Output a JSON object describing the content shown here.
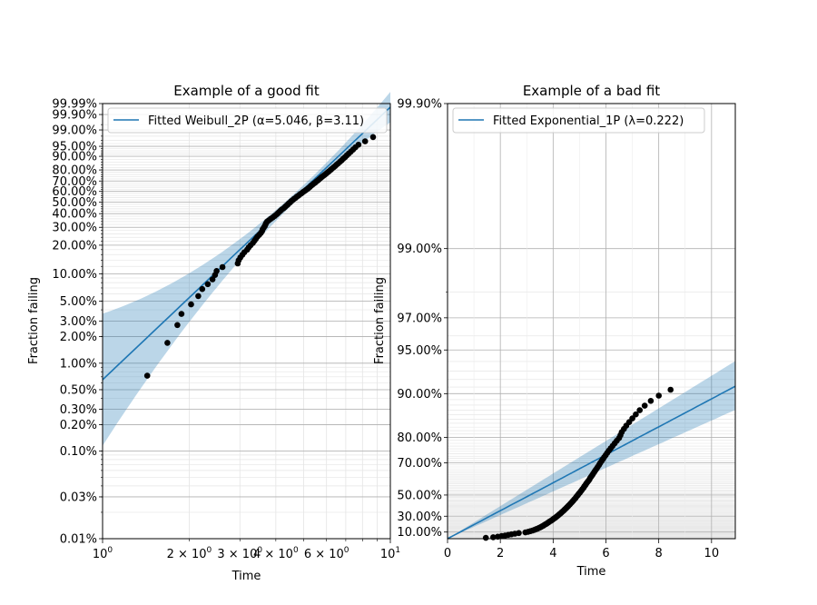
{
  "chart_data": [
    {
      "type": "scatter",
      "title": "Example of a good fit",
      "xlabel": "Time",
      "ylabel": "Fraction failing",
      "x_scale": "log",
      "y_scale": "weibull",
      "xlim": [
        1,
        10
      ],
      "ylim": [
        0.0001,
        0.9999
      ],
      "x_ticks": [
        {
          "v": 1,
          "label": "10",
          "exp": "0"
        },
        {
          "v": 10,
          "label": "10",
          "exp": "1"
        }
      ],
      "x_minor_ticks": [
        {
          "v": 2,
          "label": "2 × 10",
          "exp": "0"
        },
        {
          "v": 3,
          "label": "3 × 10",
          "exp": "0"
        },
        {
          "v": 4,
          "label": "4 × 10",
          "exp": "0"
        },
        {
          "v": 6,
          "label": "6 × 10",
          "exp": "0"
        }
      ],
      "y_ticks": [
        {
          "v": 0.0001,
          "label": "0.01%"
        },
        {
          "v": 0.0003,
          "label": "0.03%"
        },
        {
          "v": 0.001,
          "label": "0.10%"
        },
        {
          "v": 0.002,
          "label": "0.20%"
        },
        {
          "v": 0.003,
          "label": "0.30%"
        },
        {
          "v": 0.005,
          "label": "0.50%"
        },
        {
          "v": 0.01,
          "label": "1.00%"
        },
        {
          "v": 0.02,
          "label": "2.00%"
        },
        {
          "v": 0.03,
          "label": "3.00%"
        },
        {
          "v": 0.05,
          "label": "5.00%"
        },
        {
          "v": 0.1,
          "label": "10.00%"
        },
        {
          "v": 0.2,
          "label": "20.00%"
        },
        {
          "v": 0.3,
          "label": "30.00%"
        },
        {
          "v": 0.4,
          "label": "40.00%"
        },
        {
          "v": 0.5,
          "label": "50.00%"
        },
        {
          "v": 0.6,
          "label": "60.00%"
        },
        {
          "v": 0.7,
          "label": "70.00%"
        },
        {
          "v": 0.8,
          "label": "80.00%"
        },
        {
          "v": 0.9,
          "label": "90.00%"
        },
        {
          "v": 0.95,
          "label": "95.00%"
        },
        {
          "v": 0.99,
          "label": "99.00%"
        },
        {
          "v": 0.999,
          "label": "99.90%"
        },
        {
          "v": 0.9999,
          "label": "99.99%"
        }
      ],
      "legend": {
        "label": "Fitted Weibull_2P (α=5.046, β=3.11)",
        "placement": "upper-left"
      },
      "fit": {
        "alpha": 5.046,
        "beta": 3.11,
        "x_range": [
          1,
          10
        ],
        "line_color": "#1f77b4",
        "band_color": "#1f77b4"
      },
      "marker_color": "#000000",
      "points": [
        [
          1.43,
          0.0072
        ],
        [
          1.68,
          0.017
        ],
        [
          1.82,
          0.027
        ],
        [
          1.88,
          0.036
        ],
        [
          2.03,
          0.046
        ],
        [
          2.15,
          0.057
        ],
        [
          2.22,
          0.068
        ],
        [
          2.32,
          0.077
        ],
        [
          2.41,
          0.087
        ],
        [
          2.46,
          0.097
        ],
        [
          2.49,
          0.107
        ],
        [
          2.61,
          0.118
        ],
        [
          2.95,
          0.129
        ],
        [
          2.97,
          0.139
        ],
        [
          3.01,
          0.149
        ],
        [
          3.06,
          0.159
        ],
        [
          3.11,
          0.169
        ],
        [
          3.18,
          0.18
        ],
        [
          3.22,
          0.19
        ],
        [
          3.27,
          0.2
        ],
        [
          3.33,
          0.211
        ],
        [
          3.37,
          0.222
        ],
        [
          3.41,
          0.232
        ],
        [
          3.45,
          0.243
        ],
        [
          3.5,
          0.254
        ],
        [
          3.55,
          0.265
        ],
        [
          3.58,
          0.275
        ],
        [
          3.6,
          0.286
        ],
        [
          3.63,
          0.297
        ],
        [
          3.66,
          0.307
        ],
        [
          3.68,
          0.318
        ],
        [
          3.7,
          0.328
        ],
        [
          3.73,
          0.339
        ],
        [
          3.78,
          0.349
        ],
        [
          3.84,
          0.36
        ],
        [
          3.9,
          0.37
        ],
        [
          3.96,
          0.381
        ],
        [
          4.01,
          0.391
        ],
        [
          4.06,
          0.402
        ],
        [
          4.1,
          0.412
        ],
        [
          4.15,
          0.423
        ],
        [
          4.19,
          0.433
        ],
        [
          4.25,
          0.444
        ],
        [
          4.3,
          0.454
        ],
        [
          4.34,
          0.465
        ],
        [
          4.39,
          0.475
        ],
        [
          4.43,
          0.486
        ],
        [
          4.48,
          0.496
        ],
        [
          4.52,
          0.507
        ],
        [
          4.57,
          0.517
        ],
        [
          4.62,
          0.528
        ],
        [
          4.68,
          0.538
        ],
        [
          4.73,
          0.549
        ],
        [
          4.79,
          0.559
        ],
        [
          4.84,
          0.57
        ],
        [
          4.9,
          0.58
        ],
        [
          4.96,
          0.591
        ],
        [
          5.02,
          0.601
        ],
        [
          5.08,
          0.612
        ],
        [
          5.14,
          0.622
        ],
        [
          5.2,
          0.633
        ],
        [
          5.25,
          0.643
        ],
        [
          5.3,
          0.654
        ],
        [
          5.36,
          0.664
        ],
        [
          5.42,
          0.675
        ],
        [
          5.48,
          0.685
        ],
        [
          5.54,
          0.696
        ],
        [
          5.6,
          0.706
        ],
        [
          5.66,
          0.717
        ],
        [
          5.72,
          0.727
        ],
        [
          5.78,
          0.738
        ],
        [
          5.85,
          0.748
        ],
        [
          5.92,
          0.759
        ],
        [
          5.99,
          0.769
        ],
        [
          6.06,
          0.78
        ],
        [
          6.13,
          0.79
        ],
        [
          6.2,
          0.801
        ],
        [
          6.27,
          0.811
        ],
        [
          6.35,
          0.822
        ],
        [
          6.43,
          0.832
        ],
        [
          6.51,
          0.843
        ],
        [
          6.59,
          0.853
        ],
        [
          6.68,
          0.864
        ],
        [
          6.77,
          0.874
        ],
        [
          6.86,
          0.885
        ],
        [
          6.96,
          0.895
        ],
        [
          7.06,
          0.906
        ],
        [
          7.17,
          0.916
        ],
        [
          7.29,
          0.926
        ],
        [
          7.42,
          0.936
        ],
        [
          7.56,
          0.946
        ],
        [
          7.75,
          0.956
        ],
        [
          8.17,
          0.967
        ],
        [
          8.71,
          0.978
        ]
      ]
    },
    {
      "type": "scatter",
      "title": "Example of a bad fit",
      "xlabel": "Time",
      "ylabel": "Fraction failing",
      "x_scale": "linear",
      "y_scale": "exponential",
      "xlim": [
        0,
        10.9
      ],
      "ylim": [
        0,
        0.999
      ],
      "x_ticks": [
        {
          "v": 0,
          "label": "0"
        },
        {
          "v": 2,
          "label": "2"
        },
        {
          "v": 4,
          "label": "4"
        },
        {
          "v": 6,
          "label": "6"
        },
        {
          "v": 8,
          "label": "8"
        },
        {
          "v": 10,
          "label": "10"
        }
      ],
      "y_ticks": [
        {
          "v": 0.1,
          "label": "10.00%"
        },
        {
          "v": 0.3,
          "label": "30.00%"
        },
        {
          "v": 0.5,
          "label": "50.00%"
        },
        {
          "v": 0.7,
          "label": "70.00%"
        },
        {
          "v": 0.8,
          "label": "80.00%"
        },
        {
          "v": 0.9,
          "label": "90.00%"
        },
        {
          "v": 0.95,
          "label": "95.00%"
        },
        {
          "v": 0.97,
          "label": "97.00%"
        },
        {
          "v": 0.99,
          "label": "99.00%"
        },
        {
          "v": 0.999,
          "label": "99.90%"
        }
      ],
      "legend": {
        "label": "Fitted Exponential_1P (λ=0.222)",
        "placement": "upper-left"
      },
      "fit": {
        "lambda": 0.222,
        "x_range": [
          0,
          10.9
        ],
        "line_color": "#1f77b4",
        "band_color": "#1f77b4"
      },
      "marker_color": "#000000",
      "points": [
        [
          1.45,
          0.0134
        ],
        [
          1.73,
          0.0224
        ],
        [
          1.9,
          0.0313
        ],
        [
          2.05,
          0.0403
        ],
        [
          2.18,
          0.0493
        ],
        [
          2.3,
          0.0583
        ],
        [
          2.42,
          0.0673
        ],
        [
          2.55,
          0.0764
        ],
        [
          2.7,
          0.0854
        ],
        [
          2.95,
          0.0944
        ],
        [
          3.05,
          0.1034
        ],
        [
          3.14,
          0.1124
        ],
        [
          3.22,
          0.1215
        ],
        [
          3.29,
          0.1305
        ],
        [
          3.35,
          0.1395
        ],
        [
          3.41,
          0.1485
        ],
        [
          3.47,
          0.1575
        ],
        [
          3.52,
          0.1665
        ],
        [
          3.57,
          0.1756
        ],
        [
          3.62,
          0.1846
        ],
        [
          3.66,
          0.1936
        ],
        [
          3.7,
          0.2026
        ],
        [
          3.75,
          0.2116
        ],
        [
          3.79,
          0.2206
        ],
        [
          3.83,
          0.2297
        ],
        [
          3.87,
          0.2387
        ],
        [
          3.92,
          0.2477
        ],
        [
          3.96,
          0.2567
        ],
        [
          4.0,
          0.2657
        ],
        [
          4.04,
          0.2747
        ],
        [
          4.08,
          0.2838
        ],
        [
          4.12,
          0.2928
        ],
        [
          4.16,
          0.3018
        ],
        [
          4.2,
          0.3108
        ],
        [
          4.23,
          0.3198
        ],
        [
          4.27,
          0.3288
        ],
        [
          4.31,
          0.3379
        ],
        [
          4.34,
          0.3469
        ],
        [
          4.38,
          0.3559
        ],
        [
          4.42,
          0.3649
        ],
        [
          4.45,
          0.3739
        ],
        [
          4.49,
          0.383
        ],
        [
          4.52,
          0.392
        ],
        [
          4.56,
          0.401
        ],
        [
          4.59,
          0.41
        ],
        [
          4.63,
          0.419
        ],
        [
          4.66,
          0.428
        ],
        [
          4.7,
          0.4371
        ],
        [
          4.73,
          0.4461
        ],
        [
          4.77,
          0.4551
        ],
        [
          4.8,
          0.4641
        ],
        [
          4.84,
          0.4731
        ],
        [
          4.87,
          0.4821
        ],
        [
          4.9,
          0.4912
        ],
        [
          4.94,
          0.5002
        ],
        [
          4.97,
          0.5092
        ],
        [
          5.01,
          0.5182
        ],
        [
          5.04,
          0.5272
        ],
        [
          5.08,
          0.5362
        ],
        [
          5.11,
          0.5453
        ],
        [
          5.15,
          0.5543
        ],
        [
          5.18,
          0.5633
        ],
        [
          5.22,
          0.5723
        ],
        [
          5.25,
          0.5813
        ],
        [
          5.29,
          0.5904
        ],
        [
          5.33,
          0.5994
        ],
        [
          5.37,
          0.6084
        ],
        [
          5.4,
          0.6174
        ],
        [
          5.44,
          0.6264
        ],
        [
          5.48,
          0.6354
        ],
        [
          5.52,
          0.6445
        ],
        [
          5.56,
          0.6535
        ],
        [
          5.6,
          0.6625
        ],
        [
          5.65,
          0.6715
        ],
        [
          5.69,
          0.6805
        ],
        [
          5.74,
          0.6895
        ],
        [
          5.78,
          0.6986
        ],
        [
          5.83,
          0.7076
        ],
        [
          5.88,
          0.7166
        ],
        [
          5.93,
          0.7256
        ],
        [
          5.99,
          0.7346
        ],
        [
          6.05,
          0.7436
        ],
        [
          6.11,
          0.7527
        ],
        [
          6.18,
          0.7617
        ],
        [
          6.25,
          0.7707
        ],
        [
          6.33,
          0.7797
        ],
        [
          6.41,
          0.7887
        ],
        [
          6.5,
          0.7977
        ],
        [
          6.55,
          0.8068
        ],
        [
          6.6,
          0.8158
        ],
        [
          6.68,
          0.8248
        ],
        [
          6.77,
          0.8338
        ],
        [
          6.88,
          0.8428
        ],
        [
          7.0,
          0.8518
        ],
        [
          7.13,
          0.8609
        ],
        [
          7.28,
          0.8699
        ],
        [
          7.47,
          0.8789
        ],
        [
          7.7,
          0.8879
        ],
        [
          8.0,
          0.8969
        ],
        [
          8.45,
          0.906
        ]
      ]
    }
  ]
}
